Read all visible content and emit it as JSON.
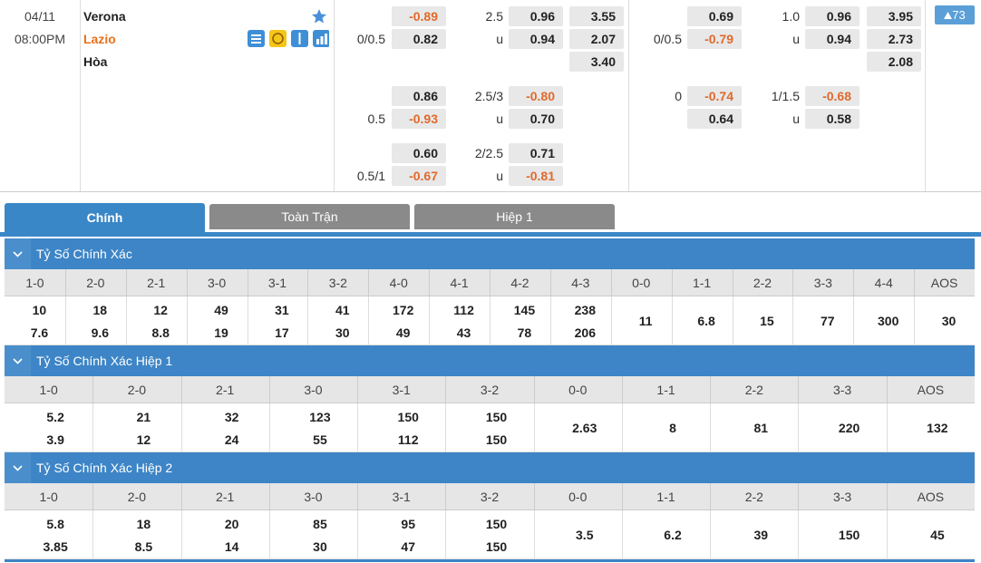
{
  "match": {
    "date": "04/11",
    "time": "08:00PM",
    "home": "Verona",
    "away": "Lazio",
    "draw": "Hòa",
    "more": 73
  },
  "groups": [
    {
      "full": [
        {
          "odds": "-0.89",
          "ou_line": "2.5",
          "ou": "0.96",
          "x12": "3.55"
        },
        {
          "line": "0/0.5",
          "odds": "0.82",
          "ou_line": "u",
          "ou": "0.94",
          "x12": "2.07"
        },
        {
          "x12": "3.40"
        }
      ],
      "half": [
        {
          "odds": "0.69",
          "ou_line": "1.0",
          "ou": "0.96",
          "x12": "3.95"
        },
        {
          "line": "0/0.5",
          "odds": "-0.79",
          "ou_line": "u",
          "ou": "0.94",
          "x12": "2.73"
        },
        {
          "x12": "2.08"
        }
      ]
    },
    {
      "full": [
        {
          "odds": "0.86",
          "ou_line": "2.5/3",
          "ou": "-0.80"
        },
        {
          "line": "0.5",
          "odds": "-0.93",
          "ou_line": "u",
          "ou": "0.70"
        }
      ],
      "half": [
        {
          "line": "0",
          "odds": "-0.74",
          "ou_line": "1/1.5",
          "ou": "-0.68"
        },
        {
          "odds": "0.64",
          "ou_line": "u",
          "ou": "0.58"
        }
      ]
    },
    {
      "full": [
        {
          "odds": "0.60",
          "ou_line": "2/2.5",
          "ou": "0.71"
        },
        {
          "line": "0.5/1",
          "odds": "-0.67",
          "ou_line": "u",
          "ou": "-0.81"
        }
      ],
      "half": []
    }
  ],
  "tabs": [
    "Chính",
    "Toàn Trận",
    "Hiệp 1"
  ],
  "sections": [
    {
      "title": "Tỷ Số Chính Xác",
      "cells": [
        {
          "header": "1-0",
          "values": [
            "10",
            "7.6"
          ]
        },
        {
          "header": "2-0",
          "values": [
            "18",
            "9.6"
          ]
        },
        {
          "header": "2-1",
          "values": [
            "12",
            "8.8"
          ]
        },
        {
          "header": "3-0",
          "values": [
            "49",
            "19"
          ]
        },
        {
          "header": "3-1",
          "values": [
            "31",
            "17"
          ]
        },
        {
          "header": "3-2",
          "values": [
            "41",
            "30"
          ]
        },
        {
          "header": "4-0",
          "values": [
            "172",
            "49"
          ]
        },
        {
          "header": "4-1",
          "values": [
            "112",
            "43"
          ]
        },
        {
          "header": "4-2",
          "values": [
            "145",
            "78"
          ]
        },
        {
          "header": "4-3",
          "values": [
            "238",
            "206"
          ]
        },
        {
          "header": "0-0",
          "values": [
            "11"
          ]
        },
        {
          "header": "1-1",
          "values": [
            "6.8"
          ]
        },
        {
          "header": "2-2",
          "values": [
            "15"
          ]
        },
        {
          "header": "3-3",
          "values": [
            "77"
          ]
        },
        {
          "header": "4-4",
          "values": [
            "300"
          ]
        },
        {
          "header": "AOS",
          "values": [
            "30"
          ]
        }
      ]
    },
    {
      "title": "Tỷ Số Chính Xác Hiệp 1",
      "cells": [
        {
          "header": "1-0",
          "values": [
            "5.2",
            "3.9"
          ]
        },
        {
          "header": "2-0",
          "values": [
            "21",
            "12"
          ]
        },
        {
          "header": "2-1",
          "values": [
            "32",
            "24"
          ]
        },
        {
          "header": "3-0",
          "values": [
            "123",
            "55"
          ]
        },
        {
          "header": "3-1",
          "values": [
            "150",
            "112"
          ]
        },
        {
          "header": "3-2",
          "values": [
            "150",
            "150"
          ]
        },
        {
          "header": "0-0",
          "values": [
            "2.63"
          ]
        },
        {
          "header": "1-1",
          "values": [
            "8"
          ]
        },
        {
          "header": "2-2",
          "values": [
            "81"
          ]
        },
        {
          "header": "3-3",
          "values": [
            "220"
          ]
        },
        {
          "header": "AOS",
          "values": [
            "132"
          ]
        }
      ]
    },
    {
      "title": "Tỷ Số Chính Xác Hiệp 2",
      "cells": [
        {
          "header": "1-0",
          "values": [
            "5.8",
            "3.85"
          ]
        },
        {
          "header": "2-0",
          "values": [
            "18",
            "8.5"
          ]
        },
        {
          "header": "2-1",
          "values": [
            "20",
            "14"
          ]
        },
        {
          "header": "3-0",
          "values": [
            "85",
            "30"
          ]
        },
        {
          "header": "3-1",
          "values": [
            "95",
            "47"
          ]
        },
        {
          "header": "3-2",
          "values": [
            "150",
            "150"
          ]
        },
        {
          "header": "0-0",
          "values": [
            "3.5"
          ]
        },
        {
          "header": "1-1",
          "values": [
            "6.2"
          ]
        },
        {
          "header": "2-2",
          "values": [
            "39"
          ]
        },
        {
          "header": "3-3",
          "values": [
            "150"
          ]
        },
        {
          "header": "AOS",
          "values": [
            "45"
          ]
        }
      ]
    }
  ]
}
